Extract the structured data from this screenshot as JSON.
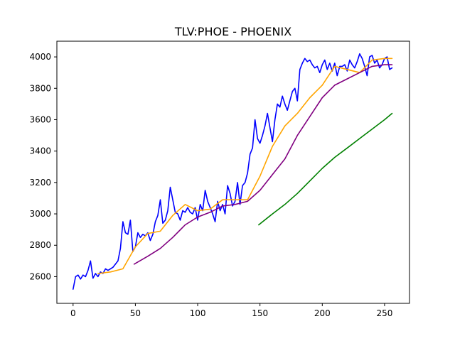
{
  "chart_data": {
    "type": "line",
    "title": "TLV:PHOE - PHOENIX",
    "xlabel": "",
    "ylabel": "",
    "xlim": [
      -13,
      270
    ],
    "ylim": [
      2430,
      4100
    ],
    "x_ticks": [
      0,
      50,
      100,
      150,
      200,
      250
    ],
    "y_ticks": [
      2600,
      2800,
      3000,
      3200,
      3400,
      3600,
      3800,
      4000
    ],
    "grid": false,
    "series": [
      {
        "color": "#0000ff",
        "x": [
          0,
          2,
          4,
          6,
          8,
          10,
          12,
          14,
          16,
          18,
          20,
          22,
          24,
          26,
          28,
          30,
          32,
          34,
          36,
          38,
          40,
          42,
          44,
          46,
          48,
          50,
          52,
          54,
          56,
          58,
          60,
          62,
          64,
          66,
          68,
          70,
          72,
          74,
          76,
          78,
          80,
          82,
          84,
          86,
          88,
          90,
          92,
          94,
          96,
          98,
          100,
          102,
          104,
          106,
          108,
          110,
          112,
          114,
          116,
          118,
          120,
          122,
          124,
          126,
          128,
          130,
          132,
          134,
          136,
          138,
          140,
          142,
          144,
          146,
          148,
          150,
          152,
          154,
          156,
          158,
          160,
          162,
          164,
          166,
          168,
          170,
          172,
          174,
          176,
          178,
          180,
          182,
          184,
          186,
          188,
          190,
          192,
          194,
          196,
          198,
          200,
          202,
          204,
          206,
          208,
          210,
          212,
          214,
          216,
          218,
          220,
          222,
          224,
          226,
          228,
          230,
          232,
          234,
          236,
          238,
          240,
          242,
          244,
          246,
          248,
          250,
          252,
          254,
          256
        ],
        "y": [
          2520,
          2600,
          2610,
          2585,
          2610,
          2600,
          2640,
          2700,
          2590,
          2620,
          2600,
          2630,
          2620,
          2650,
          2640,
          2650,
          2660,
          2680,
          2700,
          2780,
          2950,
          2880,
          2870,
          2960,
          2760,
          2790,
          2880,
          2850,
          2870,
          2860,
          2880,
          2830,
          2870,
          2950,
          2990,
          3090,
          2940,
          2960,
          3020,
          3170,
          3090,
          3010,
          3000,
          2960,
          3020,
          3010,
          3040,
          3010,
          3000,
          3040,
          2960,
          3060,
          3020,
          3150,
          3080,
          3040,
          3000,
          2950,
          3080,
          3020,
          3060,
          3000,
          3180,
          3130,
          3050,
          3080,
          3200,
          3060,
          3180,
          3200,
          3260,
          3380,
          3420,
          3600,
          3480,
          3450,
          3500,
          3560,
          3640,
          3550,
          3460,
          3600,
          3700,
          3680,
          3750,
          3700,
          3660,
          3720,
          3780,
          3800,
          3720,
          3920,
          3960,
          3990,
          3970,
          3980,
          3950,
          3930,
          3940,
          3900,
          3950,
          3980,
          3920,
          3960,
          3910,
          3960,
          3880,
          3940,
          3940,
          3950,
          3910,
          3980,
          3950,
          3930,
          3970,
          4020,
          3990,
          3940,
          3880,
          4000,
          4010,
          3960,
          3980,
          3930,
          3950,
          3990,
          4000,
          3920,
          3930
        ]
      },
      {
        "color": "#ffa500",
        "x": [
          20,
          30,
          40,
          50,
          60,
          70,
          80,
          90,
          100,
          110,
          120,
          130,
          140,
          150,
          160,
          170,
          180,
          190,
          200,
          210,
          220,
          230,
          240,
          250,
          256
        ],
        "y": [
          2620,
          2630,
          2650,
          2790,
          2875,
          2890,
          2990,
          3060,
          3020,
          3030,
          3090,
          3090,
          3090,
          3240,
          3430,
          3560,
          3640,
          3740,
          3820,
          3940,
          3920,
          3900,
          3980,
          3990,
          3990
        ]
      },
      {
        "color": "#800080",
        "x": [
          49,
          60,
          70,
          80,
          90,
          100,
          110,
          120,
          130,
          140,
          150,
          160,
          170,
          180,
          190,
          200,
          210,
          220,
          230,
          240,
          250,
          256
        ],
        "y": [
          2680,
          2730,
          2780,
          2850,
          2930,
          2980,
          3010,
          3050,
          3060,
          3080,
          3150,
          3250,
          3350,
          3500,
          3620,
          3740,
          3820,
          3860,
          3900,
          3940,
          3950,
          3950
        ]
      },
      {
        "color": "#008000",
        "x": [
          149,
          160,
          170,
          180,
          190,
          200,
          210,
          220,
          230,
          240,
          250,
          256
        ],
        "y": [
          2930,
          3000,
          3060,
          3130,
          3210,
          3290,
          3360,
          3420,
          3480,
          3540,
          3600,
          3640
        ]
      }
    ]
  }
}
